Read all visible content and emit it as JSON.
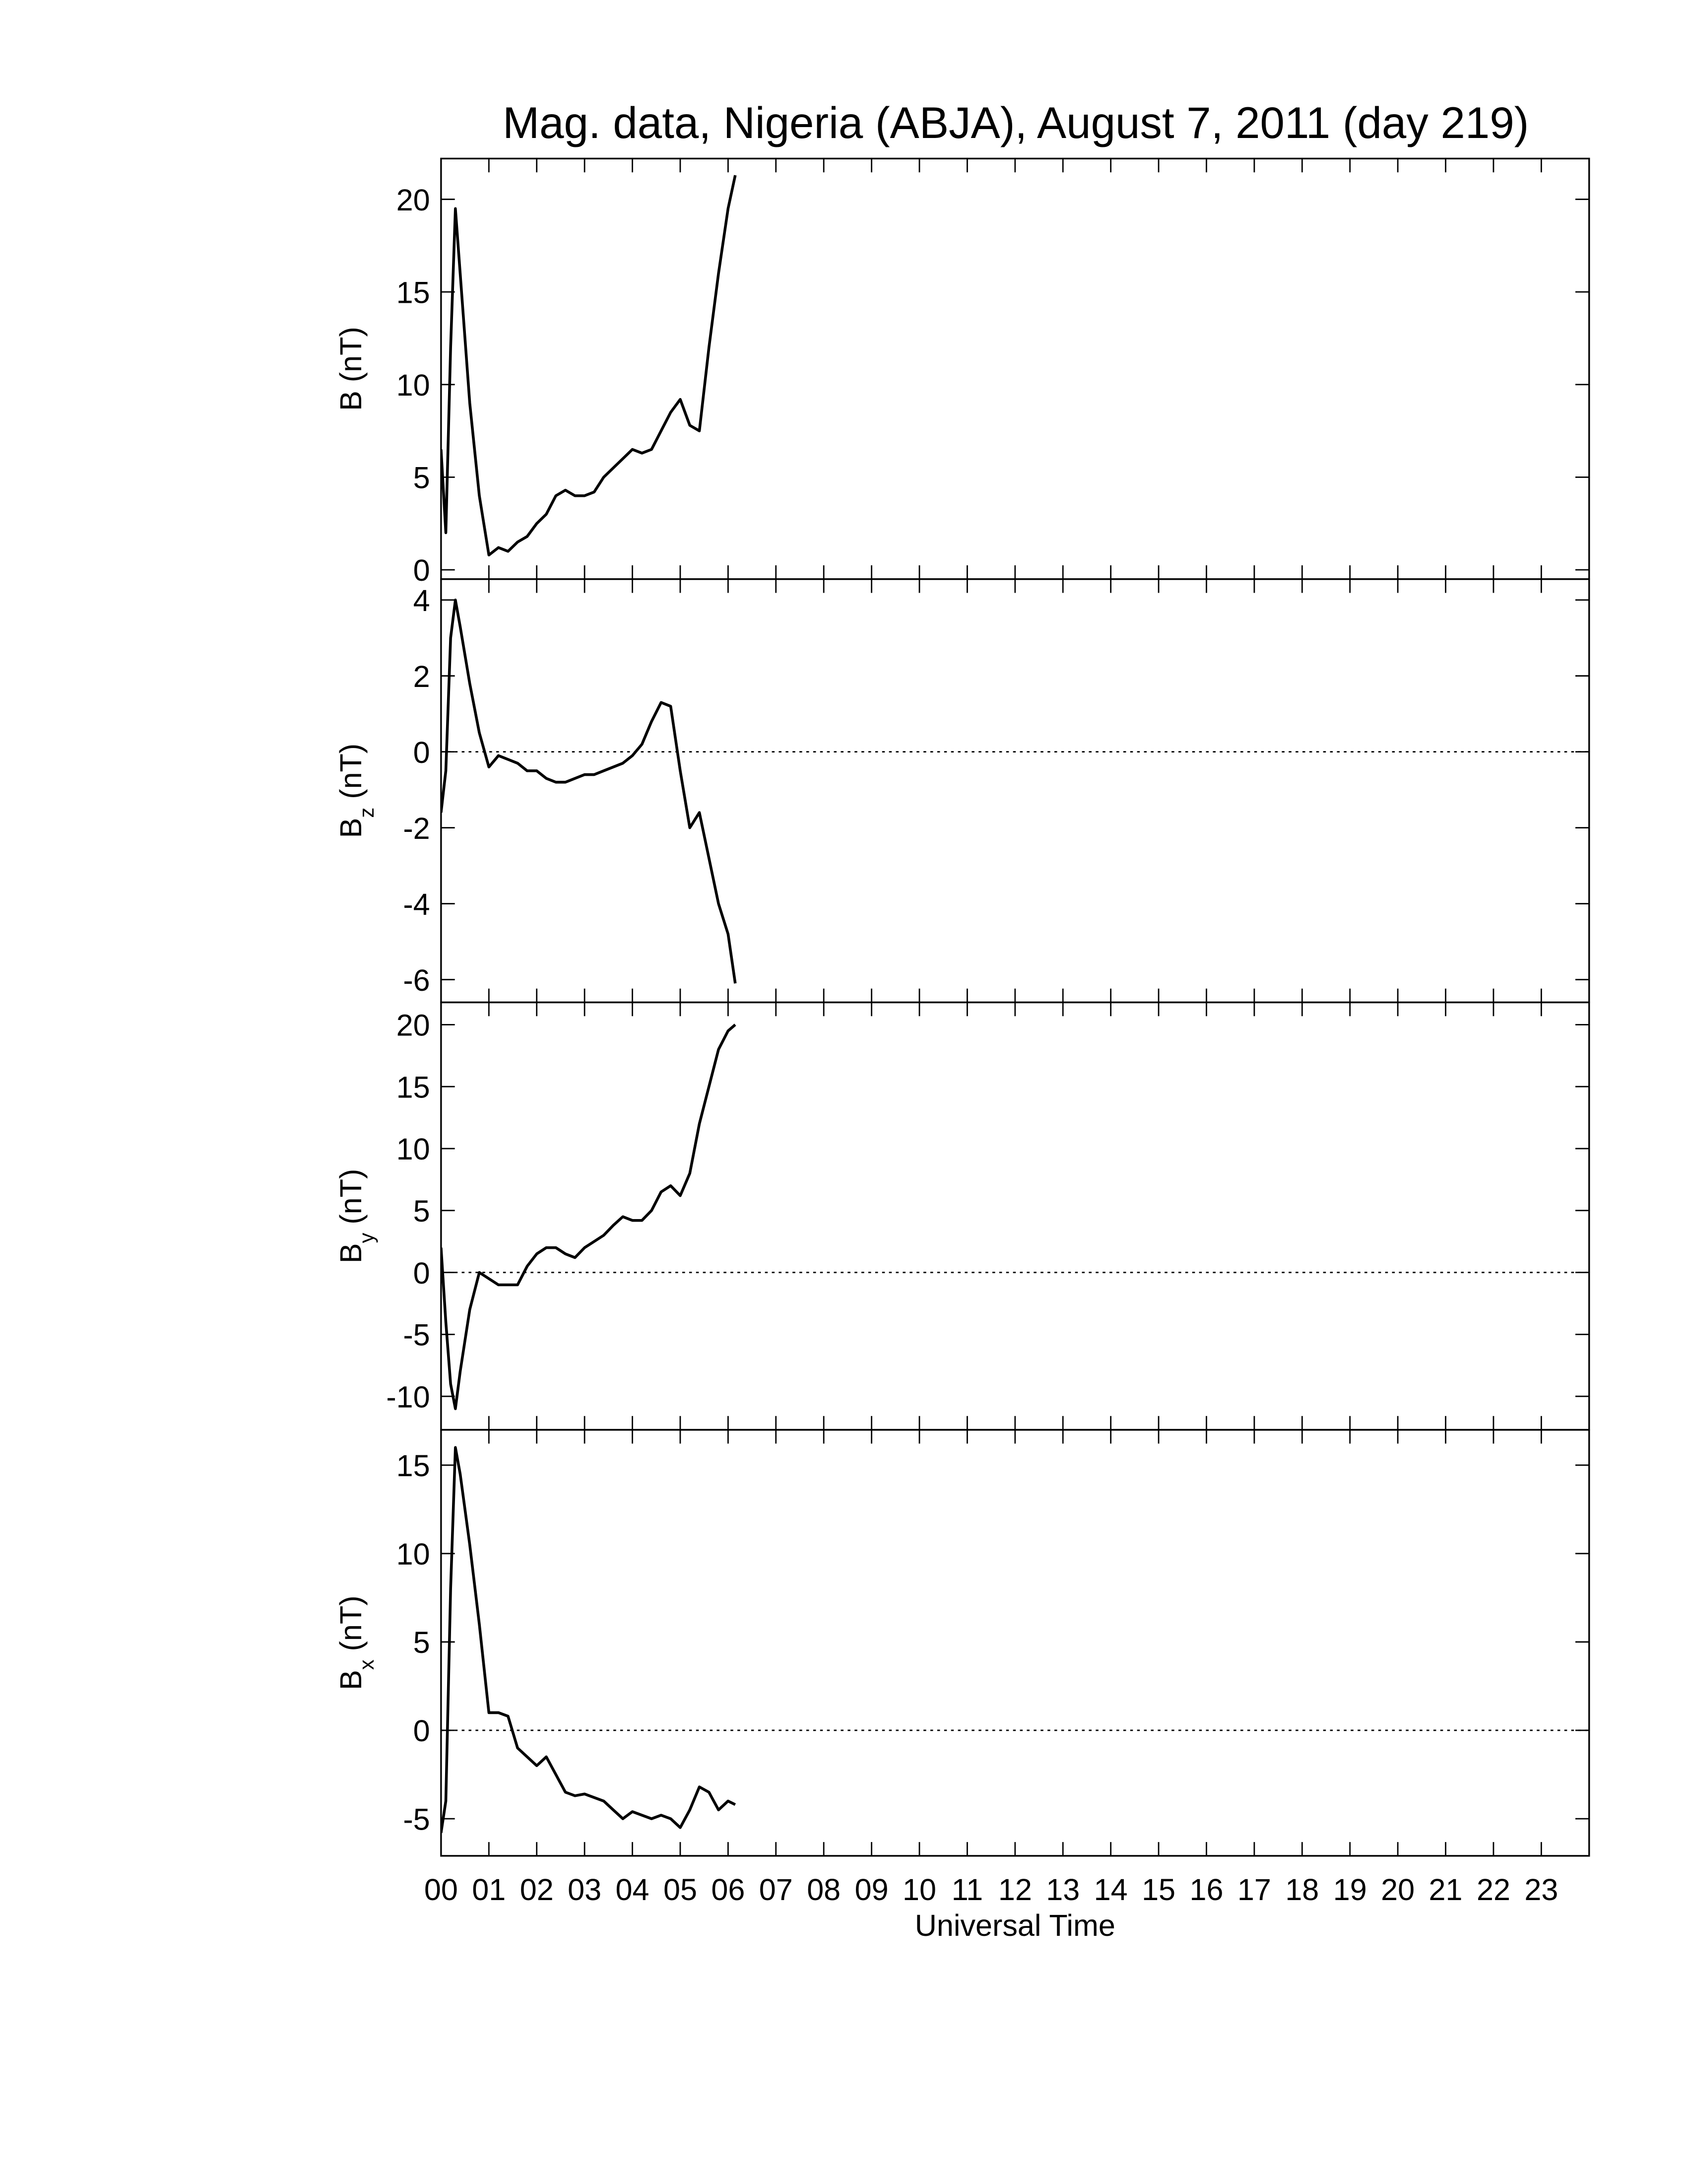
{
  "chart_data": [
    {
      "type": "line",
      "title": "Mag. data, Nigeria (ABJA), August 7, 2011 (day 219)",
      "ylabel": {
        "symbol": "B",
        "unit": "(nT)"
      },
      "x": [
        0,
        0.1,
        0.2,
        0.3,
        0.4,
        0.6,
        0.8,
        1.0,
        1.2,
        1.4,
        1.6,
        1.8,
        2.0,
        2.2,
        2.4,
        2.6,
        2.8,
        3.0,
        3.2,
        3.4,
        3.6,
        3.8,
        4.0,
        4.2,
        4.4,
        4.6,
        4.8,
        5.0,
        5.2,
        5.4,
        5.6,
        5.8,
        6.0,
        6.15
      ],
      "values": [
        6.5,
        2,
        12,
        19.5,
        16,
        9,
        4,
        0.8,
        1.2,
        1,
        1.5,
        1.8,
        2.5,
        3,
        4,
        4.3,
        4,
        4,
        4.2,
        5,
        5.5,
        6,
        6.5,
        6.3,
        6.5,
        7.5,
        8.5,
        9.2,
        7.8,
        7.5,
        12,
        16,
        19.5,
        21.3
      ],
      "color": "#000000",
      "xlim": [
        0,
        24
      ],
      "ylim": [
        -0.5,
        22.2
      ],
      "yticks": [
        0,
        5,
        10,
        15,
        20
      ],
      "zero_line": false
    },
    {
      "type": "line",
      "ylabel": {
        "symbol": "B",
        "subscript": "z",
        "unit": "(nT)"
      },
      "x": [
        0,
        0.1,
        0.2,
        0.3,
        0.4,
        0.6,
        0.8,
        1.0,
        1.2,
        1.4,
        1.6,
        1.8,
        2.0,
        2.2,
        2.4,
        2.6,
        2.8,
        3.0,
        3.2,
        3.4,
        3.6,
        3.8,
        4.0,
        4.2,
        4.4,
        4.6,
        4.8,
        5.0,
        5.2,
        5.4,
        5.6,
        5.8,
        6.0,
        6.15
      ],
      "values": [
        -1.6,
        -0.5,
        3,
        4,
        3.3,
        1.8,
        0.5,
        -0.4,
        -0.1,
        -0.2,
        -0.3,
        -0.5,
        -0.5,
        -0.7,
        -0.8,
        -0.8,
        -0.7,
        -0.6,
        -0.6,
        -0.5,
        -0.4,
        -0.3,
        -0.1,
        0.2,
        0.8,
        1.3,
        1.2,
        -0.5,
        -2,
        -1.6,
        -2.8,
        -4,
        -4.8,
        -6.1
      ],
      "color": "#000000",
      "xlim": [
        0,
        24
      ],
      "ylim": [
        -6.6,
        4.55
      ],
      "yticks": [
        -6,
        -4,
        -2,
        0,
        2,
        4
      ],
      "zero_line": true
    },
    {
      "type": "line",
      "ylabel": {
        "symbol": "B",
        "subscript": "y",
        "unit": "(nT)"
      },
      "x": [
        0,
        0.1,
        0.2,
        0.3,
        0.4,
        0.6,
        0.8,
        1.0,
        1.2,
        1.4,
        1.6,
        1.8,
        2.0,
        2.2,
        2.4,
        2.6,
        2.8,
        3.0,
        3.2,
        3.4,
        3.6,
        3.8,
        4.0,
        4.2,
        4.4,
        4.6,
        4.8,
        5.0,
        5.2,
        5.4,
        5.6,
        5.8,
        6.0,
        6.15
      ],
      "values": [
        2,
        -4,
        -9,
        -11,
        -8,
        -3,
        0,
        -0.5,
        -1,
        -1,
        -1,
        0.5,
        1.5,
        2,
        2,
        1.5,
        1.2,
        2,
        2.5,
        3,
        3.8,
        4.5,
        4.2,
        4.2,
        5,
        6.5,
        7,
        6.2,
        8,
        12,
        15,
        18,
        19.5,
        20
      ],
      "color": "#000000",
      "xlim": [
        0,
        24
      ],
      "ylim": [
        -12.7,
        21.8
      ],
      "yticks": [
        -10,
        -5,
        0,
        5,
        10,
        15,
        20
      ],
      "zero_line": true
    },
    {
      "type": "line",
      "ylabel": {
        "symbol": "B",
        "subscript": "x",
        "unit": "(nT)"
      },
      "xlabel": "Universal Time",
      "x": [
        0,
        0.1,
        0.2,
        0.3,
        0.4,
        0.6,
        0.8,
        1.0,
        1.2,
        1.4,
        1.6,
        1.8,
        2.0,
        2.2,
        2.4,
        2.6,
        2.8,
        3.0,
        3.2,
        3.4,
        3.6,
        3.8,
        4.0,
        4.2,
        4.4,
        4.6,
        4.8,
        5.0,
        5.2,
        5.4,
        5.6,
        5.8,
        6.0,
        6.15
      ],
      "values": [
        -5.8,
        -4,
        8,
        16,
        14.5,
        10.5,
        6,
        1,
        1,
        0.8,
        -1,
        -1.5,
        -2,
        -1.5,
        -2.5,
        -3.5,
        -3.7,
        -3.6,
        -3.8,
        -4,
        -4.5,
        -5,
        -4.6,
        -4.8,
        -5,
        -4.8,
        -5,
        -5.5,
        -4.5,
        -3.2,
        -3.5,
        -4.5,
        -4,
        -4.2
      ],
      "color": "#000000",
      "xlim": [
        0,
        24
      ],
      "ylim": [
        -7.1,
        17.0
      ],
      "yticks": [
        -5,
        0,
        5,
        10,
        15
      ],
      "zero_line": true,
      "xticks": [
        {
          "value": 0,
          "label": "00"
        },
        {
          "value": 1,
          "label": "01"
        },
        {
          "value": 2,
          "label": "02"
        },
        {
          "value": 3,
          "label": "03"
        },
        {
          "value": 4,
          "label": "04"
        },
        {
          "value": 5,
          "label": "05"
        },
        {
          "value": 6,
          "label": "06"
        },
        {
          "value": 7,
          "label": "07"
        },
        {
          "value": 8,
          "label": "08"
        },
        {
          "value": 9,
          "label": "09"
        },
        {
          "value": 10,
          "label": "10"
        },
        {
          "value": 11,
          "label": "11"
        },
        {
          "value": 12,
          "label": "12"
        },
        {
          "value": 13,
          "label": "13"
        },
        {
          "value": 14,
          "label": "14"
        },
        {
          "value": 15,
          "label": "15"
        },
        {
          "value": 16,
          "label": "16"
        },
        {
          "value": 17,
          "label": "17"
        },
        {
          "value": 18,
          "label": "18"
        },
        {
          "value": 19,
          "label": "19"
        },
        {
          "value": 20,
          "label": "20"
        },
        {
          "value": 21,
          "label": "21"
        },
        {
          "value": 22,
          "label": "22"
        },
        {
          "value": 23,
          "label": "23"
        }
      ]
    }
  ]
}
